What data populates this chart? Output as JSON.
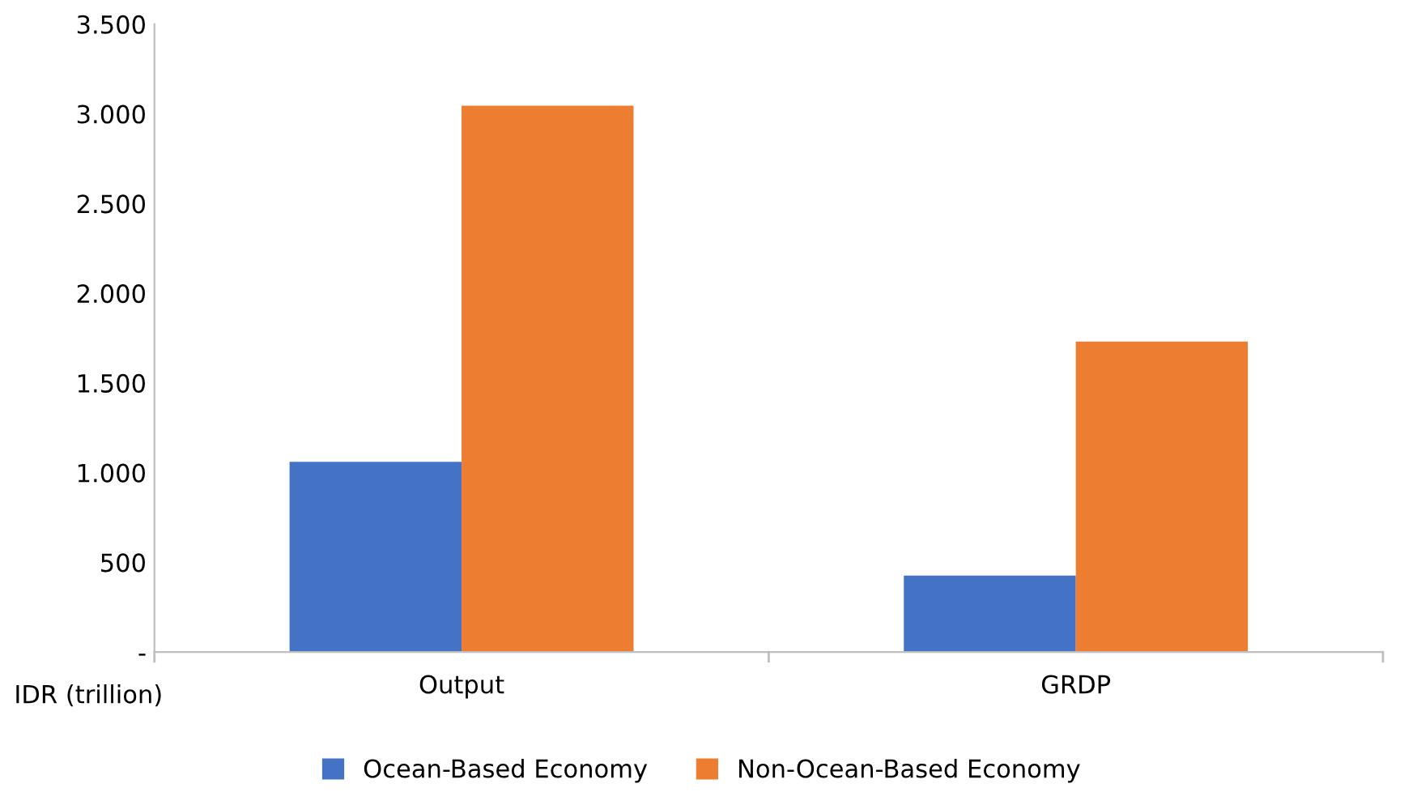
{
  "chart_data": {
    "type": "bar",
    "categories": [
      "Output",
      "GRDP"
    ],
    "series": [
      {
        "name": "Ocean-Based Economy",
        "color": "#4472c4",
        "values": [
          1060,
          426
        ]
      },
      {
        "name": "Non-Ocean-Based Economy",
        "color": "#ed7d31",
        "values": [
          3046,
          1731
        ]
      }
    ],
    "ylim": [
      0,
      3500
    ],
    "yticks": [
      {
        "value": 0,
        "label": "-"
      },
      {
        "value": 500,
        "label": "500"
      },
      {
        "value": 1000,
        "label": "1.000"
      },
      {
        "value": 1500,
        "label": "1.500"
      },
      {
        "value": 2000,
        "label": "2.000"
      },
      {
        "value": 2500,
        "label": "2.500"
      },
      {
        "value": 3000,
        "label": "3.000"
      },
      {
        "value": 3500,
        "label": "3.500"
      }
    ],
    "annotations": [
      "IDR (trillion)"
    ],
    "legend": "bottom",
    "grid": false
  }
}
